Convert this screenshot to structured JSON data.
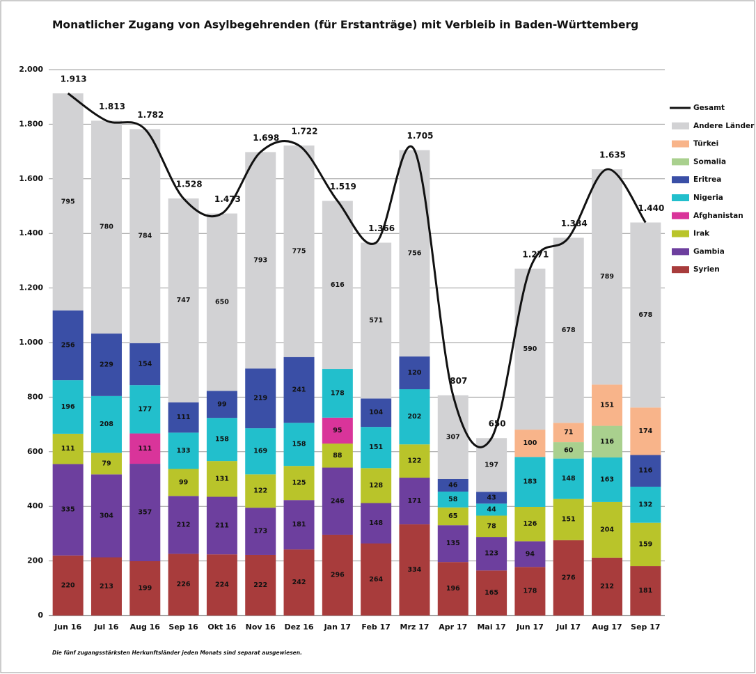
{
  "chart_data": {
    "type": "bar",
    "stacked": true,
    "title": "Monatlicher Zugang von Asylbegehrenden (für Erstanträge) mit Verbleib in Baden-Württemberg",
    "footnote": "Die fünf zugangsstärksten Herkunftsländer jeden Monats sind separat ausgewiesen.",
    "categories": [
      "Jun 16",
      "Jul 16",
      "Aug 16",
      "Sep 16",
      "Okt 16",
      "Nov 16",
      "Dez 16",
      "Jan 17",
      "Feb 17",
      "Mrz 17",
      "Apr 17",
      "Mai 17",
      "Jun 17",
      "Jul 17",
      "Aug 17",
      "Sep 17"
    ],
    "ylim": [
      0,
      2000
    ],
    "yticks": [
      0,
      200,
      400,
      600,
      800,
      {
        "value": 1000,
        "label": "1.000"
      },
      {
        "value": 1200,
        "label": "1.200"
      },
      {
        "value": 1400,
        "label": "1.400"
      },
      {
        "value": 1600,
        "label": "1.600"
      },
      {
        "value": 1800,
        "label": "1.800"
      },
      {
        "value": 2000,
        "label": "2.000"
      }
    ],
    "grid": true,
    "legend": "right",
    "series": [
      {
        "name": "Syrien",
        "color": "#a83c3c",
        "values": [
          220,
          213,
          199,
          226,
          224,
          222,
          242,
          296,
          264,
          334,
          196,
          165,
          178,
          276,
          212,
          181
        ]
      },
      {
        "name": "Gambia",
        "color": "#6d3f9e",
        "values": [
          335,
          304,
          357,
          212,
          211,
          173,
          181,
          246,
          148,
          171,
          135,
          123,
          94,
          null,
          null,
          null
        ]
      },
      {
        "name": "Irak",
        "color": "#b9c42a",
        "values": [
          111,
          79,
          null,
          99,
          131,
          122,
          125,
          88,
          128,
          122,
          65,
          78,
          126,
          151,
          204,
          159
        ]
      },
      {
        "name": "Afghanistan",
        "color": "#d9349a",
        "values": [
          null,
          null,
          111,
          null,
          null,
          null,
          null,
          95,
          null,
          null,
          null,
          null,
          null,
          null,
          null,
          null
        ]
      },
      {
        "name": "Nigeria",
        "color": "#22bfcc",
        "values": [
          196,
          208,
          177,
          133,
          158,
          169,
          158,
          178,
          151,
          202,
          58,
          44,
          183,
          148,
          163,
          132
        ]
      },
      {
        "name": "Eritrea",
        "color": "#3a4fa6",
        "values": [
          256,
          229,
          154,
          111,
          99,
          219,
          241,
          null,
          104,
          120,
          46,
          43,
          null,
          null,
          null,
          116
        ]
      },
      {
        "name": "Somalia",
        "color": "#a9d08e",
        "values": [
          null,
          null,
          null,
          null,
          null,
          null,
          null,
          null,
          null,
          null,
          null,
          null,
          null,
          60,
          116,
          null
        ]
      },
      {
        "name": "Türkei",
        "color": "#f8b48a",
        "values": [
          null,
          null,
          null,
          null,
          null,
          null,
          null,
          null,
          null,
          null,
          null,
          null,
          100,
          71,
          151,
          174
        ]
      },
      {
        "name": "Andere Länder",
        "color": "#d2d2d4",
        "values": [
          795,
          780,
          784,
          747,
          650,
          793,
          775,
          616,
          571,
          756,
          307,
          197,
          590,
          678,
          789,
          678
        ]
      },
      {
        "name": "Gesamt",
        "type": "line",
        "color": "#111111",
        "values": [
          1913,
          1813,
          1782,
          1528,
          1473,
          1698,
          1722,
          1519,
          1366,
          1705,
          807,
          650,
          1271,
          1384,
          1635,
          1440
        ],
        "value_labels": [
          "1.913",
          "1.813",
          "1.782",
          "1.528",
          "1.473",
          "1.698",
          "1.722",
          "1.519",
          "1.366",
          "1.705",
          "807",
          "650",
          "1.271",
          "1.384",
          "1.635",
          "1.440"
        ]
      }
    ]
  }
}
